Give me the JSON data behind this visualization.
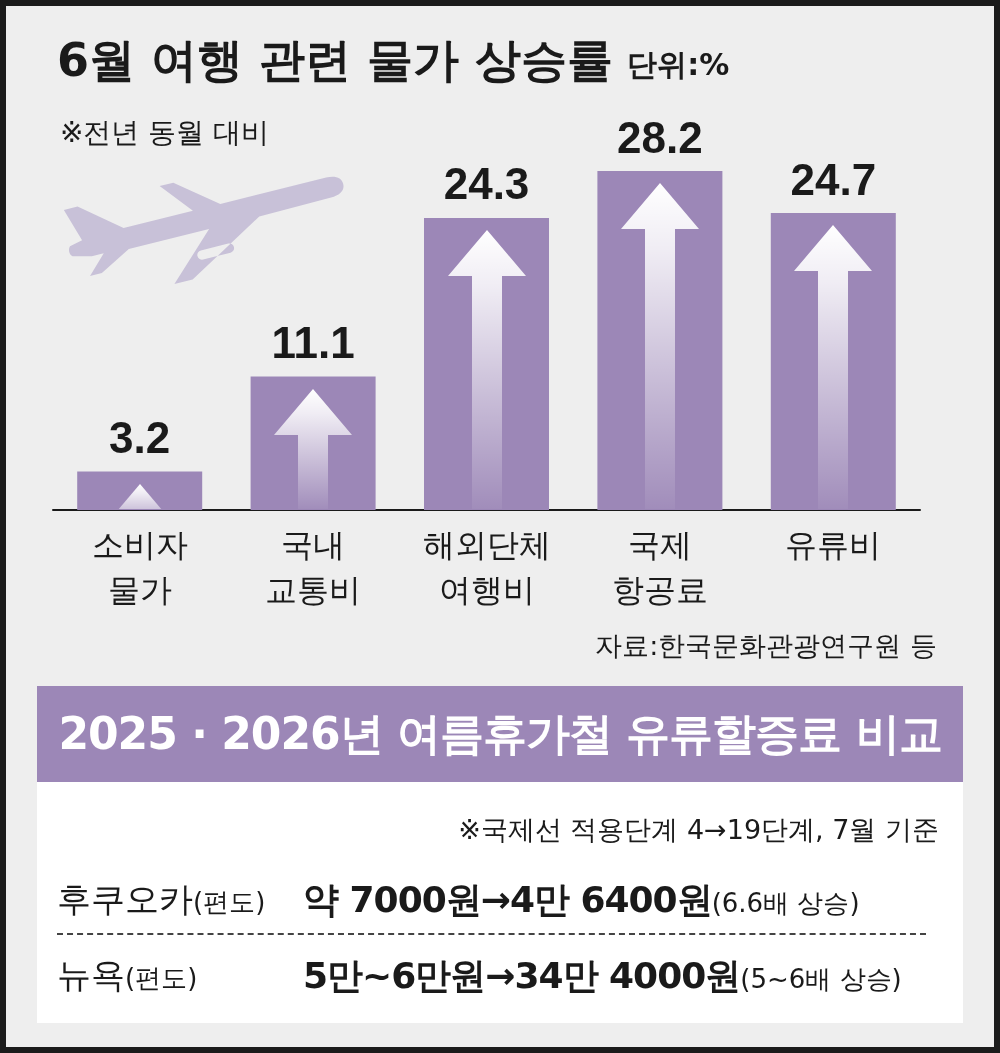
{
  "chart_data": [
    {
      "type": "bar",
      "title": "6월 여행 관련 물가 상승률",
      "subtitle": "단위:%",
      "annotations": [
        "※전년 동월 대비",
        "자료:한국문화관광연구원 등"
      ],
      "categories": [
        "소비자 물가",
        "국내 교통비",
        "해외단체 여행비",
        "국제 항공료",
        "유류비"
      ],
      "values": [
        3.2,
        11.1,
        24.3,
        28.2,
        24.7
      ],
      "color": "#9c87b7",
      "data_labels": true
    },
    {
      "type": "other",
      "title": "2025 · 2026년 여름휴가철 유류할증료 비교",
      "annotations": [
        "※국제선 적용단계 4→19단계, 7월 기준"
      ],
      "categories": [
        "후쿠오카(편도)",
        "뉴욕(편도)"
      ],
      "value_labels": [
        "약 7000원→4만 6400원(6.6배 상승)",
        "5만~6만원→34만 4000원(5~6배 상승)"
      ]
    }
  ]
}
